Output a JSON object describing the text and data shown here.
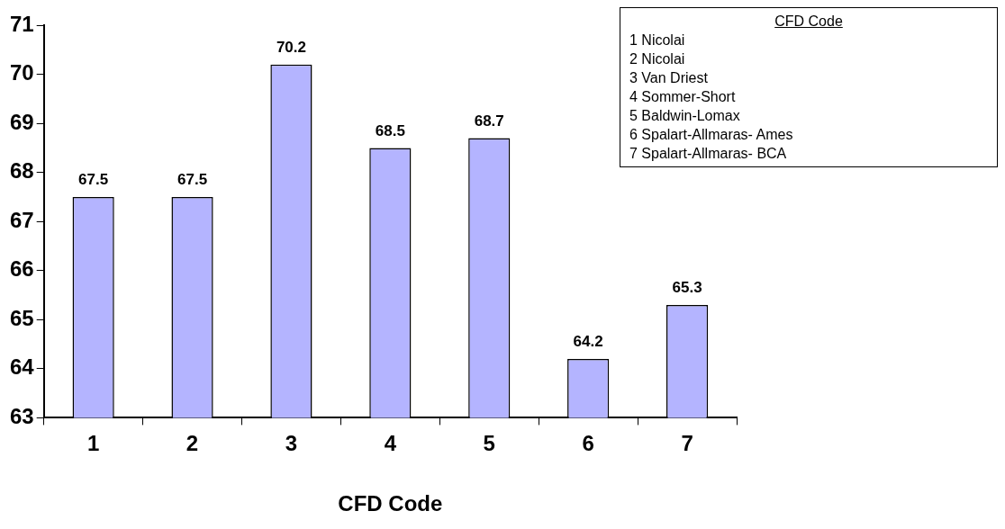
{
  "chart_data": {
    "type": "bar",
    "xlabel": "CFD Code",
    "categories": [
      "1",
      "2",
      "3",
      "4",
      "5",
      "6",
      "7"
    ],
    "values": [
      67.5,
      67.5,
      70.2,
      68.5,
      68.7,
      64.2,
      65.3
    ],
    "color": "#b4b4ff",
    "ylim": [
      63,
      71
    ],
    "yticks": [
      63,
      64,
      65,
      66,
      67,
      68,
      69,
      70,
      71
    ],
    "grid": false,
    "legend": false,
    "data_labels": true,
    "annotations": [
      "CFD Code",
      "1 Nicolai",
      "2 Nicolai",
      "3 Van Driest",
      "4 Sommer-Short",
      "5 Baldwin-Lomax",
      "6 Spalart-Allmaras- Ames",
      "7 Spalart-Allmaras- BCA"
    ]
  }
}
